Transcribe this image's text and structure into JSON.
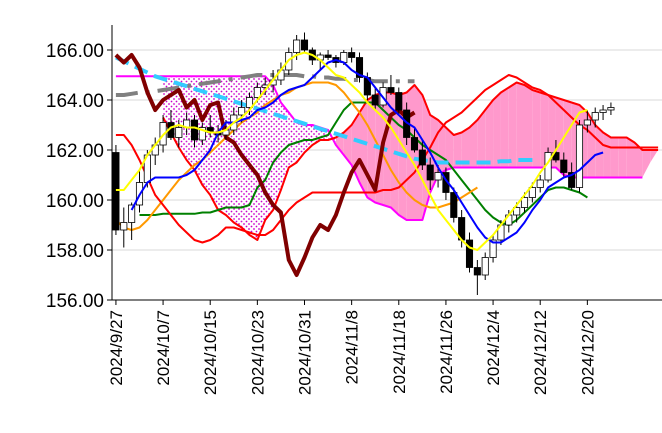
{
  "chart_data": {
    "type": "line",
    "title": "",
    "xlabel": "",
    "ylabel": "",
    "ylim": [
      156,
      167
    ],
    "y_ticks": [
      "156.00",
      "158.00",
      "160.00",
      "162.00",
      "164.00",
      "166.00"
    ],
    "y_tick_values": [
      156,
      158,
      160,
      162,
      164,
      166
    ],
    "x_ticks": [
      "2024/9/27",
      "2024/10/7",
      "2024/10/15",
      "2024/10/23",
      "2024/10/31",
      "2024/11/8",
      "2024/11/18",
      "2024/11/26",
      "2024/12/4",
      "2024/12/12",
      "2024/12/20"
    ],
    "x_tick_index": [
      0,
      6,
      12,
      18,
      24,
      30,
      36,
      42,
      48,
      54,
      60
    ],
    "x_count": 70,
    "grid": "horizontal",
    "legend": "none",
    "colors": {
      "up_candle": "#ffffff",
      "down_candle": "#000000",
      "cloud_bullish": "#ff99cc",
      "cloud_bearish_dots": "#cc00cc",
      "short_ma": "#ffff00",
      "tenkan": "#0000ff",
      "kijun": "#ff0000",
      "long_ma": "#ff9900",
      "senkou_border": "#ff00ff",
      "chikou": "#800000",
      "trend_dash": "#33ccff",
      "trend_dashdot": "#808080",
      "green_line": "#008000"
    },
    "candles": {
      "start_index": 0,
      "ohlc": [
        [
          161.9,
          162.2,
          158.6,
          158.8
        ],
        [
          158.8,
          159.7,
          158.1,
          159.1
        ],
        [
          159.1,
          159.9,
          158.4,
          159.8
        ],
        [
          159.8,
          161.2,
          159.5,
          160.7
        ],
        [
          160.7,
          162.0,
          160.5,
          161.8
        ],
        [
          161.8,
          162.5,
          161.4,
          162.2
        ],
        [
          162.2,
          163.4,
          161.9,
          163.1
        ],
        [
          163.1,
          163.6,
          162.4,
          162.5
        ],
        [
          162.5,
          163.2,
          162.1,
          162.9
        ],
        [
          162.9,
          163.5,
          162.6,
          163.2
        ],
        [
          163.2,
          163.4,
          162.1,
          162.4
        ],
        [
          162.4,
          163.1,
          162.2,
          162.9
        ],
        [
          162.9,
          163.4,
          162.5,
          162.7
        ],
        [
          162.7,
          163.0,
          162.3,
          162.6
        ],
        [
          162.6,
          163.2,
          162.4,
          162.8
        ],
        [
          162.8,
          163.7,
          162.6,
          163.4
        ],
        [
          163.4,
          164.0,
          163.1,
          163.7
        ],
        [
          163.7,
          164.3,
          163.4,
          164.1
        ],
        [
          164.1,
          164.7,
          163.9,
          164.5
        ],
        [
          164.5,
          164.9,
          164.2,
          164.6
        ],
        [
          164.6,
          165.2,
          164.3,
          164.8
        ],
        [
          164.8,
          165.5,
          164.6,
          165.2
        ],
        [
          165.2,
          166.1,
          165.0,
          165.9
        ],
        [
          165.9,
          166.6,
          165.6,
          166.4
        ],
        [
          166.4,
          166.7,
          165.9,
          166.0
        ],
        [
          166.0,
          166.1,
          165.4,
          165.6
        ],
        [
          165.6,
          165.9,
          165.2,
          165.8
        ],
        [
          165.8,
          166.0,
          165.6,
          165.7
        ],
        [
          165.7,
          165.8,
          165.3,
          165.5
        ],
        [
          165.5,
          166.0,
          165.4,
          165.9
        ],
        [
          165.9,
          166.1,
          165.5,
          165.7
        ],
        [
          165.7,
          165.9,
          164.7,
          164.9
        ],
        [
          164.9,
          165.1,
          164.0,
          164.2
        ],
        [
          164.2,
          164.5,
          163.6,
          163.8
        ],
        [
          163.8,
          164.7,
          163.7,
          164.5
        ],
        [
          164.5,
          165.0,
          164.2,
          164.3
        ],
        [
          164.3,
          164.5,
          163.4,
          163.6
        ],
        [
          163.6,
          163.9,
          162.2,
          162.5
        ],
        [
          162.5,
          162.9,
          161.9,
          162.0
        ],
        [
          162.0,
          162.4,
          161.2,
          161.4
        ],
        [
          161.4,
          161.7,
          160.4,
          160.8
        ],
        [
          160.8,
          161.4,
          160.5,
          161.1
        ],
        [
          161.1,
          161.3,
          160.0,
          160.3
        ],
        [
          160.3,
          160.5,
          159.1,
          159.3
        ],
        [
          159.3,
          159.6,
          158.1,
          158.4
        ],
        [
          158.4,
          158.7,
          157.1,
          157.3
        ],
        [
          157.3,
          157.6,
          156.2,
          157.0
        ],
        [
          157.0,
          157.9,
          156.8,
          157.7
        ],
        [
          157.7,
          158.6,
          157.5,
          158.4
        ],
        [
          158.4,
          159.2,
          158.2,
          159.0
        ],
        [
          159.0,
          159.6,
          158.7,
          159.4
        ],
        [
          159.4,
          159.9,
          159.1,
          159.7
        ],
        [
          159.7,
          160.3,
          159.5,
          160.1
        ],
        [
          160.1,
          160.7,
          159.9,
          160.5
        ],
        [
          160.5,
          161.0,
          160.3,
          160.8
        ],
        [
          160.8,
          162.1,
          160.7,
          161.9
        ],
        [
          161.9,
          162.4,
          161.5,
          161.6
        ],
        [
          161.6,
          161.9,
          160.9,
          161.1
        ],
        [
          161.1,
          161.5,
          160.4,
          160.5
        ],
        [
          160.5,
          163.2,
          160.3,
          163.0
        ],
        [
          163.0,
          163.6,
          162.7,
          163.2
        ],
        [
          163.2,
          163.7,
          162.9,
          163.5
        ],
        [
          163.5,
          163.8,
          163.2,
          163.6
        ],
        [
          163.6,
          163.9,
          163.4,
          163.7
        ]
      ]
    },
    "series": [
      {
        "key": "cloud_upper",
        "start_index": 6,
        "values": [
          164.95,
          164.95,
          164.95,
          164.95,
          164.95,
          164.95,
          164.95,
          164.95,
          164.95,
          164.95,
          164.95,
          164.95,
          164.95,
          164.95,
          164.6,
          163.9,
          163.5,
          163.1,
          163.0,
          163.0,
          162.9,
          162.8,
          162.2,
          161.8,
          161.4,
          160.7,
          160.1,
          159.9,
          159.8,
          159.7,
          159.4,
          159.2,
          159.2,
          159.2,
          160.3,
          161.0,
          161.2,
          161.3,
          161.3,
          161.3,
          161.3,
          161.3,
          161.3,
          161.3,
          161.3,
          161.3,
          161.3,
          161.3,
          161.3,
          161.3,
          161.3,
          161.0,
          160.9,
          160.9,
          160.9,
          160.9,
          160.9,
          160.9,
          160.9,
          160.9,
          160.9,
          160.9,
          161.5,
          162.0
        ]
      },
      {
        "key": "cloud_lower",
        "start_index": 6,
        "values": [
          163.3,
          162.7,
          162.1,
          161.6,
          161.2,
          160.6,
          160.2,
          159.6,
          159.4,
          159.1,
          158.9,
          158.6,
          158.4,
          159.2,
          159.6,
          160.4,
          161.3,
          161.5,
          161.9,
          162.2,
          162.4,
          162.4,
          162.5,
          162.7,
          163.0,
          163.5,
          164.0,
          164.2,
          164.3,
          164.3,
          164.2,
          164.3,
          164.6,
          164.2,
          163.4,
          163.2,
          162.9,
          162.6,
          162.7,
          162.9,
          163.2,
          163.6,
          164.0,
          164.3,
          164.5,
          164.7,
          164.6,
          164.4,
          164.3,
          164.2,
          164.1,
          164.0,
          163.9,
          163.8,
          163.5,
          163.0,
          162.7,
          162.5,
          162.5,
          162.5,
          162.3,
          162.0,
          162.0,
          162.0
        ]
      },
      {
        "key": "kijun",
        "start_index": 0,
        "values": [
          162.6,
          162.6,
          162.2,
          161.6,
          160.9,
          160.2,
          159.8,
          159.4,
          159.0,
          158.7,
          158.4,
          158.3,
          158.4,
          158.6,
          158.9,
          158.9,
          158.8,
          158.7,
          158.6,
          158.6,
          158.8,
          159.2,
          159.6,
          159.9,
          160.1,
          160.3,
          160.3,
          160.3,
          160.3,
          160.3,
          160.3,
          160.3,
          160.3,
          160.3,
          160.4,
          160.4,
          160.5,
          160.8,
          161.1,
          161.6,
          162.1,
          162.7,
          163.1,
          163.3,
          163.5,
          163.8,
          164.1,
          164.4,
          164.6,
          164.8,
          165.0,
          164.9,
          164.7,
          164.5,
          164.4,
          164.2,
          163.9,
          163.6,
          163.3,
          163.0,
          162.8,
          162.5,
          162.2,
          162.1,
          162.1,
          162.1,
          162.1,
          162.1,
          162.1,
          162.1
        ]
      },
      {
        "key": "senkou_b_border",
        "start_index": 0,
        "values": [
          164.95,
          164.95,
          164.95,
          164.95,
          164.95,
          164.95,
          164.95,
          164.95,
          164.95,
          164.95,
          164.95,
          164.95,
          164.95,
          164.95,
          164.95,
          164.95,
          164.95,
          164.95,
          164.95,
          164.95,
          164.6,
          163.9,
          163.5,
          163.1,
          163.0,
          163.0,
          162.9,
          162.8,
          162.2,
          161.8,
          161.4,
          160.7,
          160.1,
          159.9,
          159.8,
          159.7,
          159.4,
          159.2,
          159.2,
          159.2,
          160.3,
          161.0,
          161.2,
          161.3,
          161.3,
          161.3,
          161.3,
          161.3,
          161.3,
          161.3,
          161.3,
          161.3,
          161.3,
          161.3,
          161.3,
          161.3,
          161.3,
          161.0,
          160.9,
          160.9,
          160.9,
          160.9,
          160.9,
          160.9,
          160.9,
          160.9,
          160.9,
          160.9
        ]
      },
      {
        "key": "tenkan",
        "start_index": 2,
        "values": [
          159.6,
          160.2,
          160.7,
          160.9,
          160.9,
          160.9,
          160.9,
          161.0,
          161.2,
          161.6,
          162.0,
          162.7,
          163.1,
          163.1,
          163.2,
          163.3,
          163.6,
          163.7,
          163.9,
          164.2,
          164.4,
          164.5,
          164.6,
          164.9,
          165.2,
          165.5,
          165.6,
          165.5,
          165.2,
          165.0,
          164.9,
          164.5,
          164.1,
          163.7,
          163.4,
          163.1,
          162.9,
          162.4,
          161.9,
          161.3,
          160.8,
          160.4,
          159.9,
          159.4,
          158.9,
          158.5,
          158.3,
          158.3,
          158.5,
          158.7,
          159.1,
          159.6,
          160.0,
          160.5,
          160.7,
          160.9,
          161.0,
          161.2,
          161.5,
          161.8,
          161.9
        ]
      },
      {
        "key": "short_ma",
        "start_index": 0,
        "values": [
          160.4,
          160.4,
          160.8,
          161.2,
          161.8,
          162.2,
          162.6,
          162.9,
          163.0,
          162.9,
          162.9,
          162.8,
          162.7,
          162.7,
          162.8,
          163.1,
          163.3,
          163.6,
          164.0,
          164.4,
          164.8,
          165.2,
          165.6,
          165.8,
          165.9,
          165.8,
          165.6,
          165.3,
          165.0,
          164.9,
          164.6,
          164.3,
          163.9,
          163.6,
          163.3,
          162.9,
          162.4,
          161.9,
          161.4,
          160.8,
          160.2,
          159.6,
          159.2,
          158.8,
          158.4,
          158.1,
          158.0,
          158.3,
          158.6,
          159.0,
          159.4,
          159.8,
          160.2,
          160.6,
          161.1,
          161.5,
          162.0,
          162.5,
          163.0,
          163.5,
          163.6
        ]
      },
      {
        "key": "long_ma",
        "start_index": 0,
        "values": [
          159.2,
          158.9,
          158.8,
          158.9,
          159.2,
          159.6,
          160.0,
          160.4,
          160.8,
          161.1,
          161.4,
          161.6,
          161.9,
          162.2,
          162.5,
          162.8,
          163.1,
          163.3,
          163.5,
          163.8,
          164.0,
          164.2,
          164.3,
          164.5,
          164.6,
          164.7,
          164.7,
          164.7,
          164.6,
          164.3,
          163.9,
          163.5,
          163.0,
          162.4,
          161.8,
          161.2,
          160.7,
          160.3,
          160.0,
          159.8,
          159.7,
          159.7,
          159.8,
          159.9,
          160.1,
          160.3,
          160.5
        ]
      },
      {
        "key": "green_line",
        "start_index": 3,
        "values": [
          159.4,
          159.4,
          159.4,
          159.45,
          159.45,
          159.45,
          159.45,
          159.45,
          159.5,
          159.5,
          159.6,
          159.7,
          159.7,
          159.7,
          159.8,
          160.5,
          160.8,
          161.5,
          161.9,
          162.2,
          162.3,
          162.4,
          162.4,
          162.5,
          162.6,
          163.1,
          163.6,
          163.9,
          163.9,
          163.9,
          163.9,
          163.6,
          163.3,
          163.0,
          162.8,
          162.5,
          162.2,
          162.0,
          161.8,
          161.6,
          161.2,
          160.8,
          160.4,
          160.0,
          159.6,
          159.3,
          159.1,
          159.0,
          159.2,
          159.5,
          159.8,
          160.1,
          160.4,
          160.5,
          160.5,
          160.4,
          160.3,
          160.1
        ]
      },
      {
        "key": "chikou",
        "start_index": 0,
        "values": [
          165.8,
          165.5,
          165.8,
          165.3,
          164.3,
          163.6,
          164.0,
          164.2,
          164.4,
          163.7,
          164.0,
          163.2,
          163.8,
          163.9,
          162.5,
          162.3,
          161.8,
          161.4,
          161.0,
          160.3,
          159.8,
          159.5,
          157.6,
          157.0,
          157.7,
          158.5,
          159.0,
          158.8,
          159.4,
          160.3,
          161.1,
          161.6,
          161.0,
          160.4,
          162.3,
          163.4,
          163.6,
          163.3,
          163.5
        ]
      },
      {
        "key": "trend_dash",
        "start_index": 0,
        "values": [
          165.7,
          165.55,
          165.4,
          165.25,
          165.1,
          164.95,
          164.85,
          164.75,
          164.65,
          164.55,
          164.45,
          164.35,
          164.25,
          164.15,
          164.05,
          163.95,
          163.85,
          163.75,
          163.65,
          163.55,
          163.45,
          163.35,
          163.25,
          163.15,
          163.05,
          162.95,
          162.85,
          162.75,
          162.65,
          162.55,
          162.45,
          162.35,
          162.25,
          162.15,
          162.05,
          161.95,
          161.85,
          161.75,
          161.65,
          161.6,
          161.55,
          161.5,
          161.5,
          161.5,
          161.5,
          161.5,
          161.5,
          161.5,
          161.5,
          161.55,
          161.55,
          161.6,
          161.6,
          161.6
        ]
      },
      {
        "key": "trend_dashdot",
        "start_index": 0,
        "values": [
          164.2,
          164.2,
          164.25,
          164.3,
          164.3,
          164.35,
          164.4,
          164.45,
          164.5,
          164.55,
          164.6,
          164.65,
          164.7,
          164.75,
          164.8,
          164.85,
          164.9,
          164.95,
          165.0,
          165.0,
          165.0,
          165.0,
          165.0,
          165.0,
          164.95,
          164.95,
          164.9,
          164.9,
          164.85,
          164.85,
          164.8,
          164.8,
          164.8,
          164.75,
          164.75,
          164.75,
          164.75,
          164.75,
          164.75
        ]
      }
    ]
  }
}
